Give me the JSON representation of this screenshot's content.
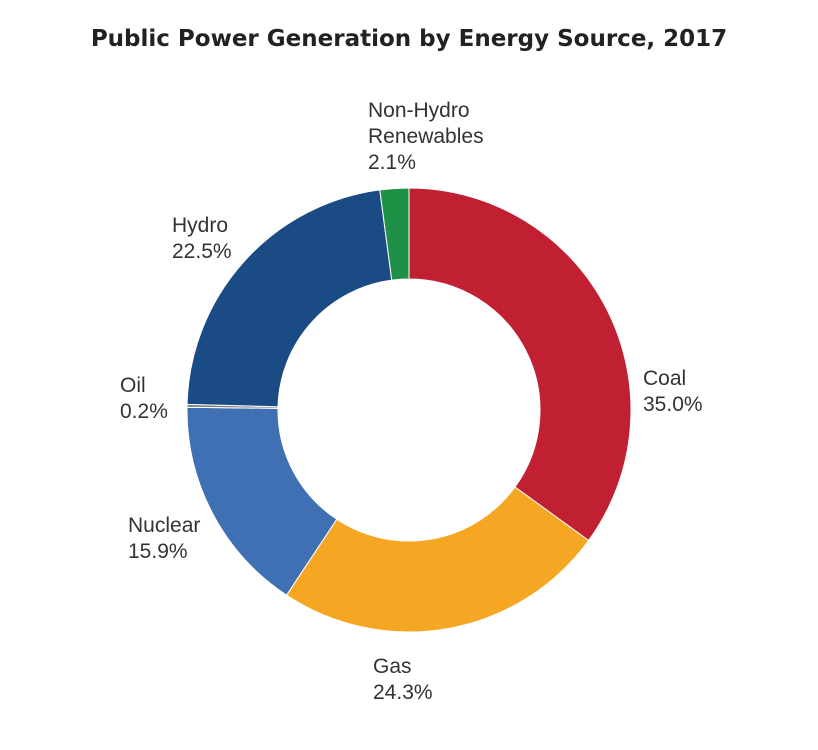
{
  "chart_data": {
    "type": "pie",
    "variant": "donut",
    "title": "Public Power Generation by Energy Source, 2017",
    "unit": "%",
    "slices": [
      {
        "label_lines": [
          "Coal"
        ],
        "value": 35.0,
        "display": "35.0%",
        "color": "#c11f32"
      },
      {
        "label_lines": [
          "Gas"
        ],
        "value": 24.3,
        "display": "24.3%",
        "color": "#f5a623"
      },
      {
        "label_lines": [
          "Nuclear"
        ],
        "value": 15.9,
        "display": "15.9%",
        "color": "#3e70b3"
      },
      {
        "label_lines": [
          "Oil"
        ],
        "value": 0.2,
        "display": "0.2%",
        "color": "#7a7f85"
      },
      {
        "label_lines": [
          "Hydro"
        ],
        "value": 22.5,
        "display": "22.5%",
        "color": "#1a4b84"
      },
      {
        "label_lines": [
          "Non-Hydro",
          "Renewables"
        ],
        "value": 2.1,
        "display": "2.1%",
        "color": "#1f9146"
      }
    ]
  }
}
